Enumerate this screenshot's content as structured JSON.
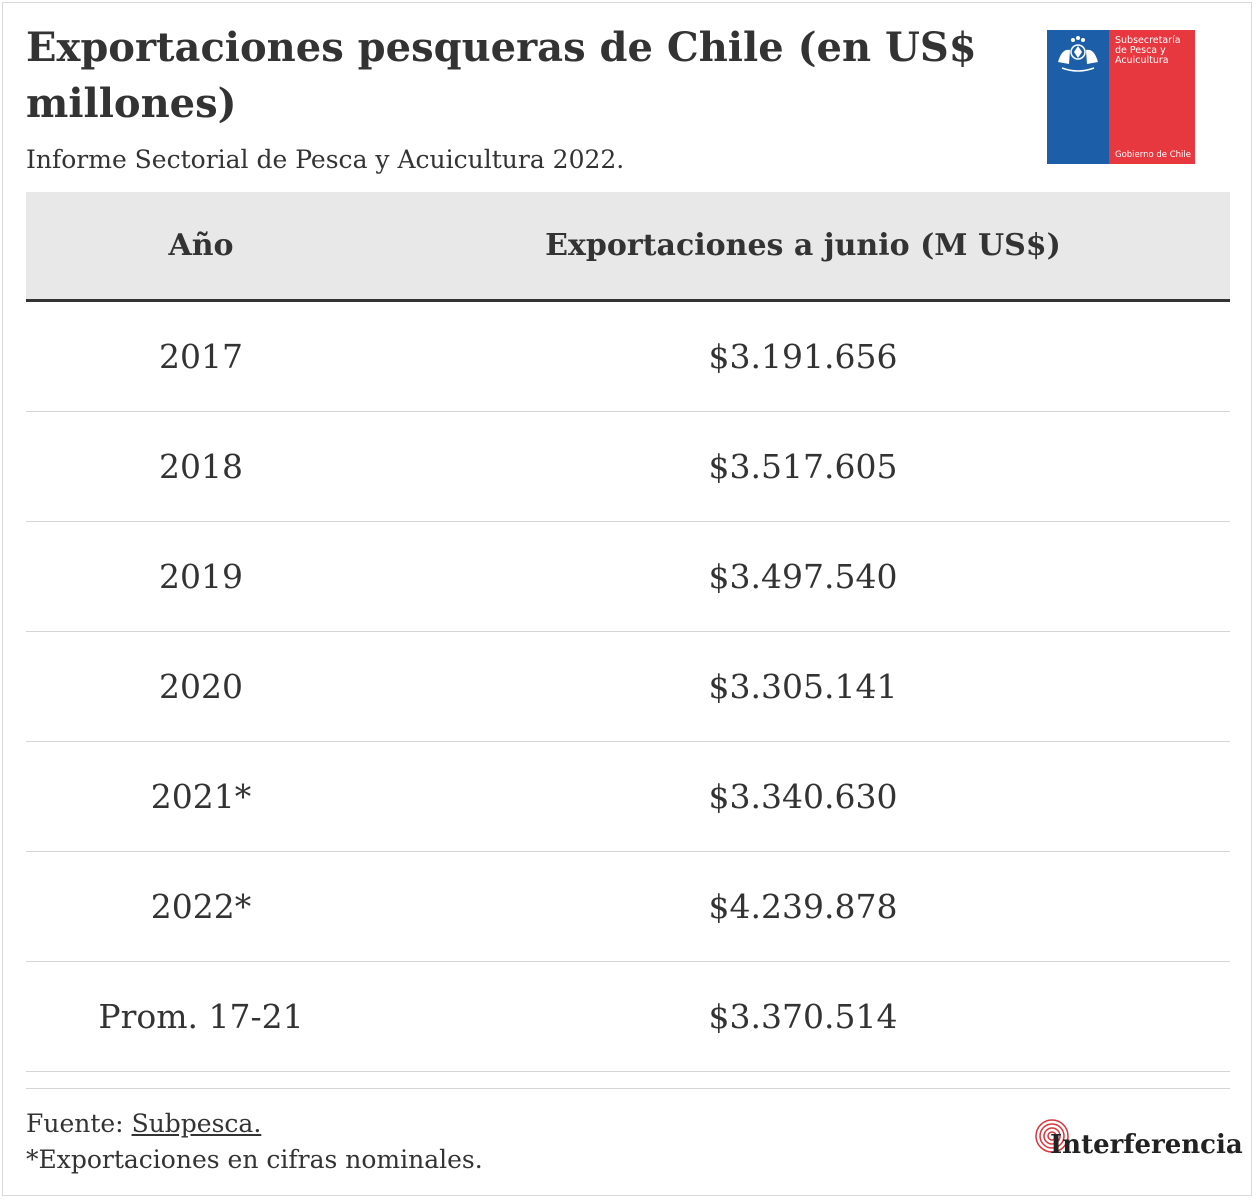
{
  "header": {
    "title": "Exportaciones pesqueras de Chile (en US$ millones)",
    "subtitle": "Informe Sectorial de Pesca y Acuicultura 2022."
  },
  "logo": {
    "line1": "Subsecretaría",
    "line2": "de Pesca y",
    "line3": "Acuicultura",
    "footer": "Gobierno de Chile",
    "colors": {
      "blue": "#1c5fa8",
      "red": "#e8383f"
    }
  },
  "chart_data": {
    "type": "table",
    "columns": [
      "Año",
      "Exportaciones a junio (M US$)"
    ],
    "rows": [
      {
        "year": "2017",
        "value": "$3.191.656"
      },
      {
        "year": "2018",
        "value": "$3.517.605"
      },
      {
        "year": "2019",
        "value": "$3.497.540"
      },
      {
        "year": "2020",
        "value": "$3.305.141"
      },
      {
        "year": "2021*",
        "value": "$3.340.630"
      },
      {
        "year": "2022*",
        "value": "$4.239.878"
      },
      {
        "year": "Prom. 17-21",
        "value": "$3.370.514"
      }
    ]
  },
  "footer": {
    "source_prefix": "Fuente: ",
    "source_link": "Subpesca.",
    "note": "*Exportaciones en cifras nominales.",
    "brand": "Interferencia",
    "brand_color": "#d9363e"
  }
}
